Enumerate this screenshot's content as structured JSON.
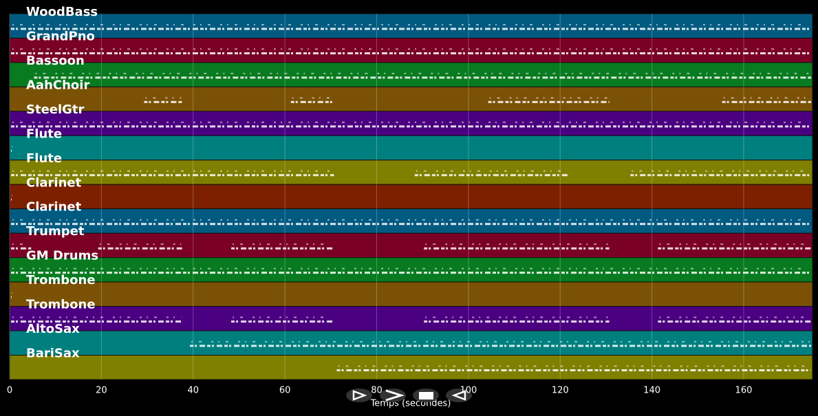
{
  "chart_data": {
    "type": "timeline",
    "xlabel": "Temps (secondes)",
    "xlim": [
      0,
      175
    ],
    "xticks": [
      0,
      20,
      40,
      60,
      80,
      100,
      120,
      140,
      160
    ],
    "grid": true,
    "tracks": [
      {
        "name": "WoodBass",
        "color": "#015a80",
        "spans": [
          [
            0,
            175
          ]
        ]
      },
      {
        "name": "GrandPno",
        "color": "#7a0026",
        "spans": [
          [
            0,
            175
          ]
        ]
      },
      {
        "name": "Bassoon",
        "color": "#087a1f",
        "spans": [
          [
            5,
            175
          ]
        ]
      },
      {
        "name": "AahChoir",
        "color": "#7b5205",
        "spans": [
          [
            29,
            38
          ],
          [
            61,
            71
          ],
          [
            104,
            131
          ],
          [
            155,
            175
          ]
        ]
      },
      {
        "name": "SteelGtr",
        "color": "#4a0080",
        "spans": [
          [
            0,
            175
          ]
        ]
      },
      {
        "name": "Flute",
        "color": "#007f7f",
        "spans": [
          [
            0,
            0.5
          ]
        ]
      },
      {
        "name": "Flute",
        "color": "#7f7f00",
        "spans": [
          [
            0,
            71
          ],
          [
            88,
            122
          ],
          [
            135,
            175
          ]
        ]
      },
      {
        "name": "Clarinet",
        "color": "#7c2000",
        "spans": [
          [
            0,
            0.5
          ]
        ]
      },
      {
        "name": "Clarinet",
        "color": "#015a80",
        "spans": [
          [
            0,
            175
          ]
        ]
      },
      {
        "name": "Trumpet",
        "color": "#7a0026",
        "spans": [
          [
            0,
            5
          ],
          [
            19,
            38
          ],
          [
            48,
            71
          ],
          [
            90,
            131
          ],
          [
            141,
            175
          ]
        ]
      },
      {
        "name": "GM Drums",
        "color": "#087a1f",
        "spans": [
          [
            0,
            175
          ]
        ]
      },
      {
        "name": "Trombone",
        "color": "#7b5205",
        "spans": [
          [
            0,
            0.5
          ]
        ]
      },
      {
        "name": "Trombone",
        "color": "#4a0080",
        "spans": [
          [
            0,
            38
          ],
          [
            48,
            71
          ],
          [
            90,
            131
          ],
          [
            141,
            175
          ]
        ]
      },
      {
        "name": "AltoSax",
        "color": "#007f7f",
        "spans": [
          [
            39,
            175
          ]
        ]
      },
      {
        "name": "BariSax",
        "color": "#7f7f00",
        "spans": [
          [
            71,
            175
          ]
        ]
      }
    ]
  }
}
